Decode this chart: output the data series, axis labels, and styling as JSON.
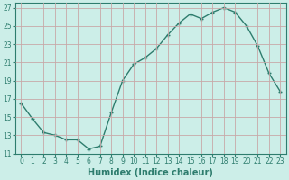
{
  "x": [
    0,
    1,
    2,
    3,
    4,
    5,
    6,
    7,
    8,
    9,
    10,
    11,
    12,
    13,
    14,
    15,
    16,
    17,
    18,
    19,
    20,
    21,
    22,
    23
  ],
  "y": [
    16.5,
    14.8,
    13.3,
    13.0,
    12.5,
    12.5,
    11.5,
    11.8,
    15.5,
    19.0,
    20.8,
    21.5,
    22.5,
    24.0,
    25.3,
    26.3,
    25.8,
    26.5,
    27.0,
    26.5,
    25.0,
    22.8,
    19.8,
    17.8
  ],
  "line_color": "#2e7d6e",
  "marker": "+",
  "marker_size": 3,
  "marker_lw": 1.0,
  "line_width": 1.0,
  "bg_color": "#cceee8",
  "grid_color": "#c8a8a8",
  "xlabel": "Humidex (Indice chaleur)",
  "xlim": [
    -0.5,
    23.5
  ],
  "ylim": [
    11,
    27.5
  ],
  "yticks": [
    11,
    13,
    15,
    17,
    19,
    21,
    23,
    25,
    27
  ],
  "xticks": [
    0,
    1,
    2,
    3,
    4,
    5,
    6,
    7,
    8,
    9,
    10,
    11,
    12,
    13,
    14,
    15,
    16,
    17,
    18,
    19,
    20,
    21,
    22,
    23
  ],
  "xtick_labels": [
    "0",
    "1",
    "2",
    "3",
    "4",
    "5",
    "6",
    "7",
    "8",
    "9",
    "10",
    "11",
    "12",
    "13",
    "14",
    "15",
    "16",
    "17",
    "18",
    "19",
    "20",
    "21",
    "22",
    "23"
  ],
  "font_color": "#2e7d6e",
  "tick_fontsize": 5.5,
  "xlabel_fontsize": 7.0
}
